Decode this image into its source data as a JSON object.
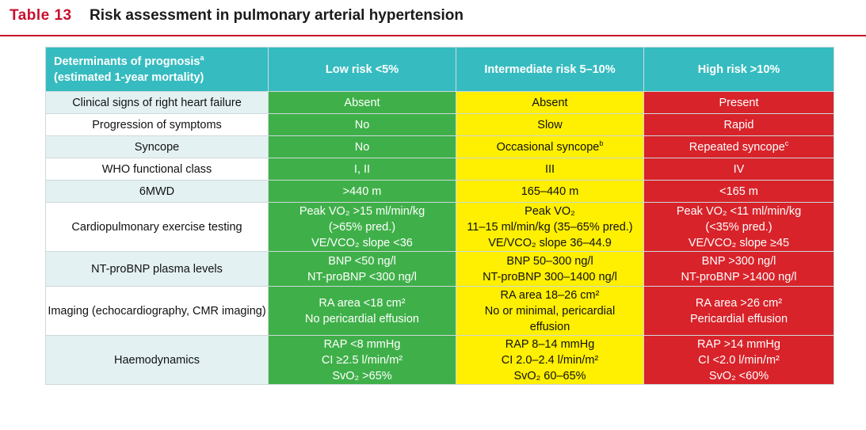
{
  "header": {
    "table_number": "Table 13",
    "title": "Risk assessment in pulmonary arterial hypertension"
  },
  "columns": {
    "determinants_line1": "Determinants of prognosis",
    "determinants_sup": "a",
    "determinants_line2": "(estimated 1-year mortality)",
    "low": "Low risk <5%",
    "intermediate": "Intermediate risk 5–10%",
    "high": "High risk >10%"
  },
  "rows": [
    {
      "label": "Clinical signs of right heart failure",
      "low": [
        "Absent"
      ],
      "intermediate": [
        "Absent"
      ],
      "high": [
        "Present"
      ]
    },
    {
      "label": "Progression of symptoms",
      "low": [
        "No"
      ],
      "intermediate": [
        "Slow"
      ],
      "high": [
        "Rapid"
      ]
    },
    {
      "label": "Syncope",
      "low": [
        "No"
      ],
      "intermediate": [
        "Occasional syncope"
      ],
      "intermediate_sup": "b",
      "high": [
        "Repeated syncope"
      ],
      "high_sup": "c"
    },
    {
      "label": "WHO functional class",
      "low": [
        "I, II"
      ],
      "intermediate": [
        "III"
      ],
      "high": [
        "IV"
      ]
    },
    {
      "label": "6MWD",
      "low": [
        ">440 m"
      ],
      "intermediate": [
        "165–440 m"
      ],
      "high": [
        "<165 m"
      ]
    },
    {
      "label": "Cardiopulmonary exercise testing",
      "low": [
        "Peak VO₂ >15 ml/min/kg",
        "(>65% pred.)",
        "VE/VCO₂ slope <36"
      ],
      "intermediate": [
        "Peak VO₂",
        "11–15 ml/min/kg (35–65% pred.)",
        "VE/VCO₂ slope 36–44.9"
      ],
      "high": [
        "Peak VO₂ <11 ml/min/kg",
        "(<35% pred.)",
        "VE/VCO₂ slope ≥45"
      ]
    },
    {
      "label": "NT-proBNP plasma levels",
      "low": [
        "BNP <50 ng/l",
        "NT-proBNP <300 ng/l"
      ],
      "intermediate": [
        "BNP 50–300 ng/l",
        "NT-proBNP 300–1400 ng/l"
      ],
      "high": [
        "BNP >300 ng/l",
        "NT-proBNP >1400 ng/l"
      ]
    },
    {
      "label": "Imaging (echocardiography, CMR imaging)",
      "low": [
        "RA area <18 cm²",
        "No pericardial effusion"
      ],
      "intermediate": [
        "RA area 18–26 cm²",
        "No or minimal, pericardial",
        "effusion"
      ],
      "high": [
        "RA area >26 cm²",
        "Pericardial effusion"
      ]
    },
    {
      "label": "Haemodynamics",
      "low": [
        "RAP <8 mmHg",
        "CI ≥2.5 l/min/m²",
        "SvO₂ >65%"
      ],
      "intermediate": [
        "RAP 8–14 mmHg",
        "CI 2.0–2.4 l/min/m²",
        "SvO₂ 60–65%"
      ],
      "high": [
        "RAP >14 mmHg",
        "CI <2.0 l/min/m²",
        "SvO₂ <60%"
      ]
    }
  ],
  "colors": {
    "accent": "#c8102e",
    "header_bg": "#36bcc0",
    "low": "#3fb049",
    "intermediate": "#ffef00",
    "high": "#d8232a",
    "label_alt_bg": "#e4f1f3"
  }
}
